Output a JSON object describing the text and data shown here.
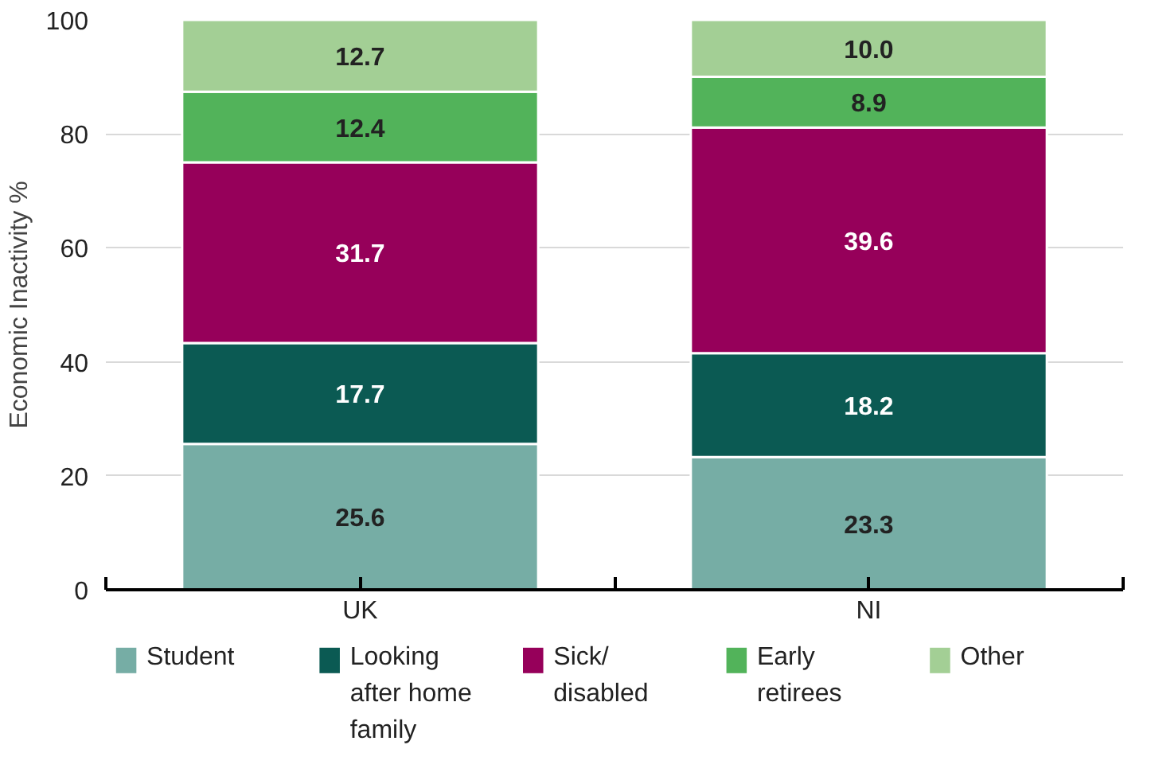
{
  "chart_data": {
    "type": "bar",
    "stacked": true,
    "categories": [
      "UK",
      "NI"
    ],
    "ylabel": "Economic Inactivity %",
    "ylim": [
      0,
      100
    ],
    "yticks": [
      0,
      20,
      40,
      60,
      80,
      100
    ],
    "grid": "y",
    "legend": "bottom",
    "series": [
      {
        "name": "Student",
        "color": "#76ada5",
        "values": [
          25.6,
          23.3
        ],
        "value_labels": [
          "25.6",
          "23.3"
        ]
      },
      {
        "name": "Looking after home family",
        "color": "#0b5a53",
        "values": [
          17.7,
          18.2
        ],
        "value_labels": [
          "17.7",
          "18.2"
        ]
      },
      {
        "name": "Sick/ disabled",
        "color": "#96005a",
        "values": [
          31.7,
          39.6
        ],
        "value_labels": [
          "31.7",
          "39.6"
        ]
      },
      {
        "name": "Early retirees",
        "color": "#52b35a",
        "values": [
          12.4,
          8.9
        ],
        "value_labels": [
          "12.4",
          "8.9"
        ]
      },
      {
        "name": "Other",
        "color": "#a3cf95",
        "values": [
          12.7,
          10.0
        ],
        "value_labels": [
          "12.7",
          "10.0"
        ]
      }
    ]
  }
}
